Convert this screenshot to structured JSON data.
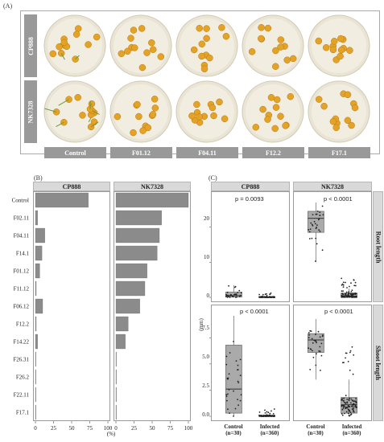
{
  "panel_a": {
    "label": "(A)",
    "rows": [
      "CP888",
      "NK7328"
    ],
    "columns": [
      "Control",
      "F01.12",
      "F04.11",
      "F12.2",
      "F17.1"
    ]
  },
  "panel_b": {
    "label": "(B)",
    "xlabel": "(%)",
    "ticks": [
      "0",
      "25",
      "50",
      "75",
      "100"
    ]
  },
  "panel_c": {
    "label": "(C)",
    "ylabel": "(mm)",
    "row_strips": [
      "Root length",
      "Shoot length"
    ],
    "col_strips": [
      "CP888",
      "NK7328"
    ],
    "root_ticks": [
      "0",
      "10",
      "20"
    ],
    "shoot_ticks": [
      "0.0",
      "2.5",
      "5.0",
      "7.5"
    ],
    "pvalues": [
      "p = 0.0093",
      "p < 0.0001",
      "p < 0.0001",
      "p < 0.0001"
    ],
    "x_categories": [
      {
        "name": "Control",
        "n": "(n=30)"
      },
      {
        "name": "Infected",
        "n": "(n=360)"
      }
    ]
  },
  "chart_data": [
    {
      "type": "bar",
      "orientation": "horizontal",
      "categories": [
        "Control",
        "F02.11",
        "F04.11",
        "F14.1",
        "F01.12",
        "F11.12",
        "F06.12",
        "F12.2",
        "F14.22",
        "F26.31",
        "F26.2",
        "F22.11",
        "F17.1"
      ],
      "series": [
        {
          "name": "CP888",
          "values": [
            73,
            3,
            13,
            9,
            6,
            1,
            10,
            1,
            3,
            0,
            0,
            0,
            0
          ]
        },
        {
          "name": "NK7328",
          "values": [
            100,
            63,
            60,
            57,
            43,
            40,
            33,
            17,
            13,
            0,
            0,
            0,
            0
          ]
        }
      ],
      "xlim": [
        0,
        100
      ],
      "xlabel": "(%)"
    },
    {
      "type": "box",
      "panels": [
        {
          "row": "Root length",
          "col": "CP888",
          "ylim": [
            0,
            27
          ],
          "groups": [
            {
              "name": "Control",
              "q1": 0.1,
              "median": 0.5,
              "q3": 1.5,
              "whisker_low": 0,
              "whisker_high": 3.5
            },
            {
              "name": "Infected",
              "q1": 0,
              "median": 0,
              "q3": 0.2,
              "whisker_low": 0,
              "whisker_high": 0.5
            }
          ]
        },
        {
          "row": "Root length",
          "col": "NK7328",
          "ylim": [
            0,
            27
          ],
          "groups": [
            {
              "name": "Control",
              "q1": 18.5,
              "median": 22.5,
              "q3": 24.5,
              "whisker_low": 10,
              "whisker_high": 27
            },
            {
              "name": "Infected",
              "q1": 0,
              "median": 0.3,
              "q3": 1.2,
              "whisker_low": 0,
              "whisker_high": 2.5
            }
          ]
        },
        {
          "row": "Shoot length",
          "col": "CP888",
          "ylim": [
            0,
            9.6
          ],
          "groups": [
            {
              "name": "Control",
              "q1": 0.3,
              "median": 2.6,
              "q3": 6.8,
              "whisker_low": 0,
              "whisker_high": 9.6
            },
            {
              "name": "Infected",
              "q1": 0,
              "median": 0,
              "q3": 0.1,
              "whisker_low": 0,
              "whisker_high": 0.3
            }
          ]
        },
        {
          "row": "Shoot length",
          "col": "NK7328",
          "ylim": [
            0,
            9.6
          ],
          "groups": [
            {
              "name": "Control",
              "q1": 6.1,
              "median": 7.3,
              "q3": 7.9,
              "whisker_low": 3.5,
              "whisker_high": 9.3
            },
            {
              "name": "Infected",
              "q1": 0.3,
              "median": 1.1,
              "q3": 1.8,
              "whisker_low": 0,
              "whisker_high": 3.5
            }
          ]
        }
      ]
    }
  ]
}
